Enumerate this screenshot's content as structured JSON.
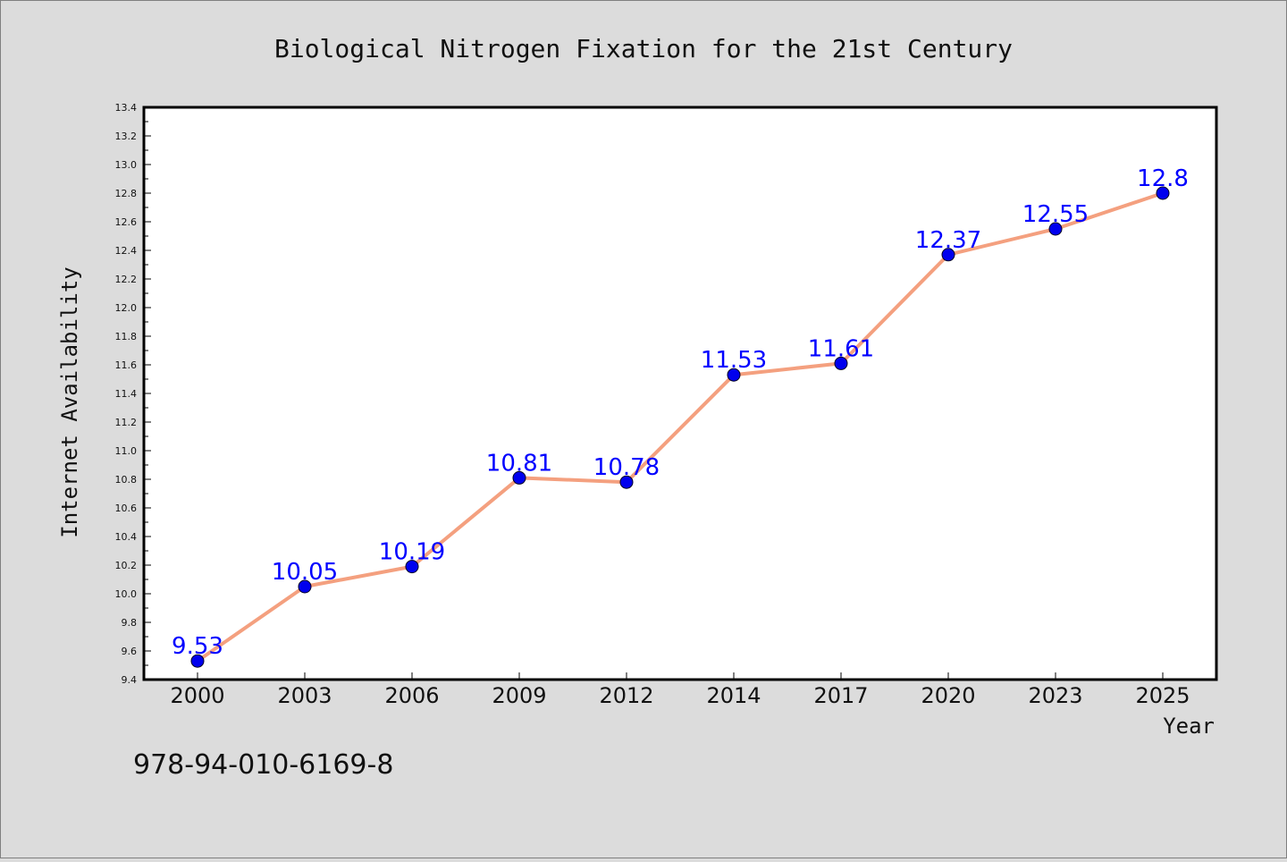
{
  "chart_data": {
    "type": "line",
    "title": "Biological Nitrogen Fixation for the 21st Century",
    "xlabel": "Year",
    "ylabel": "Internet Availability",
    "categories": [
      "2000",
      "2003",
      "2006",
      "2009",
      "2012",
      "2014",
      "2017",
      "2020",
      "2023",
      "2025"
    ],
    "series": [
      {
        "values": [
          9.53,
          10.05,
          10.19,
          10.81,
          10.78,
          11.53,
          11.61,
          12.37,
          12.55,
          12.8
        ],
        "labels": [
          "9.53",
          "10.05",
          "10.19",
          "10.81",
          "10.78",
          "11.53",
          "11.61",
          "12.37",
          "12.55",
          "12.8"
        ]
      }
    ],
    "ylim": [
      9.4,
      13.4
    ],
    "yticks": [
      "9.4",
      "9.6",
      "9.8",
      "10.0",
      "10.2",
      "10.4",
      "10.6",
      "10.8",
      "11.0",
      "11.2",
      "11.4",
      "11.6",
      "11.8",
      "12.0",
      "12.2",
      "12.4",
      "12.6",
      "12.8",
      "13.0",
      "13.2",
      "13.4"
    ],
    "grid": false,
    "legend": "none",
    "line_color": "#f4a07f",
    "marker_color": "#0000ee",
    "label_color": "#0000ff"
  },
  "footer_text": "978-94-010-6169-8",
  "colors": {
    "background": "#dcdcdc",
    "plot_background": "#ffffff",
    "text": "#111111"
  }
}
